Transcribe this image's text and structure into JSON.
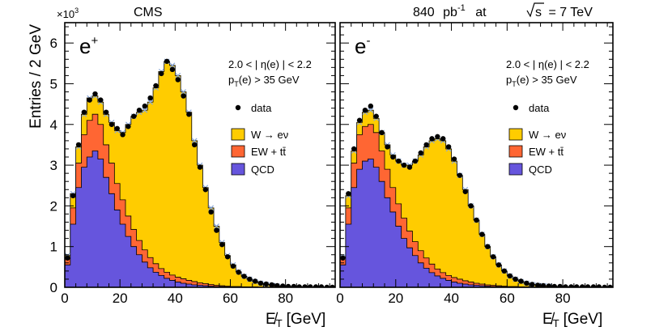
{
  "header": {
    "experiment": "CMS",
    "lumi_prefix": "840",
    "lumi_unit": "pb",
    "lumi_exp": "-1",
    "at_word": "at",
    "sqrt_s": "s",
    "energy": "= 7 TeV"
  },
  "y_axis": {
    "label": "Entries / 2 GeV",
    "multiplier": "×10",
    "multiplier_exp": "3"
  },
  "x_axis": {
    "label": "E̸",
    "label_sub": "T",
    "label_unit": "[GeV]"
  },
  "colors": {
    "w_signal": "#ffcc00",
    "ewk_ttbar": "#ff6633",
    "qcd": "#6655dd",
    "data": "#000000",
    "band": "#8aa8d8"
  },
  "chart_data": [
    {
      "type": "area",
      "panel": "left",
      "charge_label": "e",
      "charge_sup": "+",
      "cut1": "2.0 < | η(e) | < 2.2",
      "cut2": "p",
      "cut2_sub": "T",
      "cut2_rest": "(e) > 35 GeV",
      "legend": [
        "data",
        "W → eν",
        "EW + tt̄",
        "QCD"
      ],
      "legend_position": "right",
      "xlim": [
        0,
        98
      ],
      "ylim": [
        0,
        6.5
      ],
      "x_ticks": [
        "0",
        "20",
        "40",
        "60",
        "80"
      ],
      "y_ticks": [
        "0",
        "1",
        "2",
        "3",
        "4",
        "5",
        "6"
      ],
      "bin_width": 2,
      "x": [
        1,
        3,
        5,
        7,
        9,
        11,
        13,
        15,
        17,
        19,
        21,
        23,
        25,
        27,
        29,
        31,
        33,
        35,
        37,
        39,
        41,
        43,
        45,
        47,
        49,
        51,
        53,
        55,
        57,
        59,
        61,
        63,
        65,
        67,
        69,
        71,
        73,
        75,
        77,
        79,
        81,
        83,
        85,
        87,
        89,
        91,
        93,
        95,
        97
      ],
      "qcd": [
        0.55,
        1.55,
        2.45,
        2.95,
        3.2,
        3.35,
        3.15,
        2.7,
        2.3,
        1.9,
        1.55,
        1.25,
        1.0,
        0.8,
        0.62,
        0.48,
        0.37,
        0.29,
        0.22,
        0.17,
        0.13,
        0.1,
        0.08,
        0.06,
        0.05,
        0.04,
        0.03,
        0.02,
        0.02,
        0.01,
        0.01,
        0.01,
        0.01,
        0.0,
        0.0,
        0.0,
        0.0,
        0.0,
        0.0,
        0.0,
        0.0,
        0.0,
        0.0,
        0.0,
        0.0,
        0.0,
        0.0,
        0.0,
        0.0
      ],
      "ewk": [
        0.7,
        1.95,
        3.05,
        3.75,
        4.1,
        4.25,
        4.0,
        3.5,
        3.05,
        2.55,
        2.15,
        1.75,
        1.42,
        1.15,
        0.92,
        0.73,
        0.58,
        0.46,
        0.37,
        0.3,
        0.25,
        0.21,
        0.17,
        0.14,
        0.11,
        0.09,
        0.07,
        0.05,
        0.04,
        0.03,
        0.02,
        0.02,
        0.01,
        0.01,
        0.01,
        0.0,
        0.0,
        0.0,
        0.0,
        0.0,
        0.0,
        0.0,
        0.0,
        0.0,
        0.0,
        0.0,
        0.0,
        0.0,
        0.0
      ],
      "total": [
        0.78,
        2.3,
        3.45,
        4.25,
        4.65,
        4.7,
        4.55,
        4.25,
        4.05,
        3.85,
        3.8,
        4.0,
        4.2,
        4.3,
        4.35,
        4.55,
        4.9,
        5.3,
        5.55,
        5.45,
        5.2,
        4.8,
        4.3,
        3.6,
        3.0,
        2.45,
        1.95,
        1.5,
        1.1,
        0.78,
        0.55,
        0.38,
        0.27,
        0.2,
        0.14,
        0.1,
        0.07,
        0.05,
        0.03,
        0.02,
        0.02,
        0.01,
        0.01,
        0.0,
        0.0,
        0.0,
        0.0,
        0.0,
        0.0
      ],
      "data": [
        0.72,
        2.25,
        3.5,
        4.3,
        4.6,
        4.75,
        4.6,
        4.3,
        4.0,
        3.9,
        3.75,
        3.95,
        4.2,
        4.35,
        4.45,
        4.65,
        4.95,
        5.25,
        5.55,
        5.35,
        5.1,
        4.7,
        4.25,
        3.5,
        2.95,
        2.4,
        1.85,
        1.4,
        1.05,
        0.75,
        0.52,
        0.37,
        0.27,
        0.2,
        0.15,
        0.1,
        0.08,
        0.06,
        0.04,
        0.03,
        0.02,
        0.02,
        0.01,
        0.01,
        0.01,
        0.01,
        0.01,
        0.0,
        0.0
      ]
    },
    {
      "type": "area",
      "panel": "right",
      "charge_label": "e",
      "charge_sup": "-",
      "cut1": "2.0 < | η(e) | < 2.2",
      "cut2": "p",
      "cut2_sub": "T",
      "cut2_rest": "(e) > 35 GeV",
      "legend": [
        "data",
        "W → eν",
        "EW + tt̄",
        "QCD"
      ],
      "legend_position": "right",
      "xlim": [
        0,
        98
      ],
      "ylim": [
        0,
        6.5
      ],
      "x_ticks": [
        "0",
        "20",
        "40",
        "60",
        "80"
      ],
      "bin_width": 2,
      "x": [
        1,
        3,
        5,
        7,
        9,
        11,
        13,
        15,
        17,
        19,
        21,
        23,
        25,
        27,
        29,
        31,
        33,
        35,
        37,
        39,
        41,
        43,
        45,
        47,
        49,
        51,
        53,
        55,
        57,
        59,
        61,
        63,
        65,
        67,
        69,
        71,
        73,
        75,
        77,
        79,
        81,
        83,
        85,
        87,
        89,
        91,
        93,
        95,
        97
      ],
      "qcd": [
        0.55,
        1.55,
        2.45,
        2.9,
        3.1,
        3.15,
        2.95,
        2.6,
        2.2,
        1.85,
        1.5,
        1.2,
        0.97,
        0.78,
        0.6,
        0.47,
        0.36,
        0.28,
        0.22,
        0.17,
        0.13,
        0.1,
        0.08,
        0.06,
        0.05,
        0.04,
        0.03,
        0.02,
        0.02,
        0.01,
        0.01,
        0.01,
        0.01,
        0.0,
        0.0,
        0.0,
        0.0,
        0.0,
        0.0,
        0.0,
        0.0,
        0.0,
        0.0,
        0.0,
        0.0,
        0.0,
        0.0,
        0.0,
        0.0
      ],
      "ewk": [
        0.72,
        1.95,
        3.05,
        3.75,
        3.95,
        4.0,
        3.8,
        3.35,
        2.9,
        2.45,
        2.05,
        1.7,
        1.38,
        1.12,
        0.9,
        0.72,
        0.57,
        0.45,
        0.36,
        0.29,
        0.24,
        0.2,
        0.16,
        0.13,
        0.1,
        0.08,
        0.06,
        0.05,
        0.04,
        0.03,
        0.02,
        0.02,
        0.01,
        0.01,
        0.01,
        0.0,
        0.0,
        0.0,
        0.0,
        0.0,
        0.0,
        0.0,
        0.0,
        0.0,
        0.0,
        0.0,
        0.0,
        0.0,
        0.0
      ],
      "total": [
        0.75,
        2.25,
        3.35,
        4.05,
        4.3,
        4.35,
        4.15,
        3.8,
        3.5,
        3.25,
        3.1,
        3.0,
        3.0,
        3.1,
        3.25,
        3.45,
        3.6,
        3.65,
        3.6,
        3.4,
        3.1,
        2.75,
        2.4,
        2.0,
        1.65,
        1.3,
        1.0,
        0.75,
        0.55,
        0.4,
        0.28,
        0.2,
        0.14,
        0.1,
        0.07,
        0.05,
        0.04,
        0.03,
        0.02,
        0.01,
        0.01,
        0.01,
        0.0,
        0.0,
        0.0,
        0.0,
        0.0,
        0.0,
        0.0
      ],
      "data": [
        0.72,
        2.3,
        3.4,
        4.1,
        4.35,
        4.45,
        4.2,
        3.8,
        3.45,
        3.2,
        3.1,
        3.0,
        2.95,
        3.1,
        3.3,
        3.5,
        3.65,
        3.7,
        3.65,
        3.45,
        3.15,
        2.75,
        2.35,
        2.0,
        1.65,
        1.3,
        1.0,
        0.75,
        0.55,
        0.4,
        0.28,
        0.2,
        0.15,
        0.1,
        0.07,
        0.05,
        0.04,
        0.03,
        0.02,
        0.02,
        0.01,
        0.01,
        0.01,
        0.01,
        0.01,
        0.01,
        0.01,
        0.0,
        0.0
      ]
    }
  ]
}
